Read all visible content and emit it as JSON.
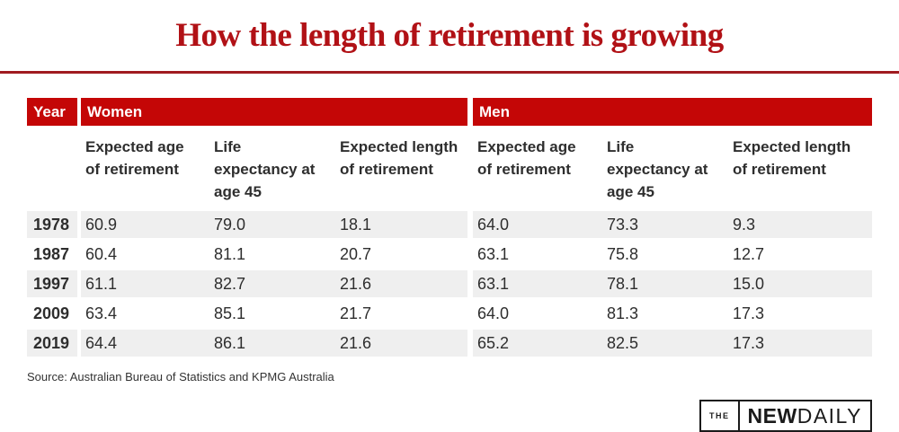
{
  "page": {
    "title": "How the length of retirement is growing",
    "source": "Source: Australian Bureau of Statistics and KPMG Australia"
  },
  "colors": {
    "title_red": "#b11116",
    "rule_red": "#a01b20",
    "header_red": "#c40606",
    "row_alt_gray": "#efefef",
    "text_dark": "#2e2e2e"
  },
  "chart_data": {
    "type": "table",
    "title": "How the length of retirement is growing",
    "group_headers": {
      "year": "Year",
      "women": "Women",
      "men": "Men"
    },
    "column_headers": {
      "women": [
        "Expected age\nof retirement",
        "Life\nexpectancy at\nage 45",
        "Expected length\nof retirement"
      ],
      "men": [
        "Expected age\nof retirement",
        "Life\nexpectancy at\nage 45",
        "Expected length\nof retirement"
      ]
    },
    "rows": [
      {
        "year": "1978",
        "women": [
          "60.9",
          "79.0",
          "18.1"
        ],
        "men": [
          "64.0",
          "73.3",
          "9.3"
        ]
      },
      {
        "year": "1987",
        "women": [
          "60.4",
          "81.1",
          "20.7"
        ],
        "men": [
          "63.1",
          "75.8",
          "12.7"
        ]
      },
      {
        "year": "1997",
        "women": [
          "61.1",
          "82.7",
          "21.6"
        ],
        "men": [
          "63.1",
          "78.1",
          "15.0"
        ]
      },
      {
        "year": "2009",
        "women": [
          "63.4",
          "85.1",
          "21.7"
        ],
        "men": [
          "64.0",
          "81.3",
          "17.3"
        ]
      },
      {
        "year": "2019",
        "women": [
          "64.4",
          "86.1",
          "21.6"
        ],
        "men": [
          "65.2",
          "82.5",
          "17.3"
        ]
      }
    ]
  },
  "logo": {
    "the": "THE",
    "new": "NEW",
    "daily": "DAILY"
  }
}
